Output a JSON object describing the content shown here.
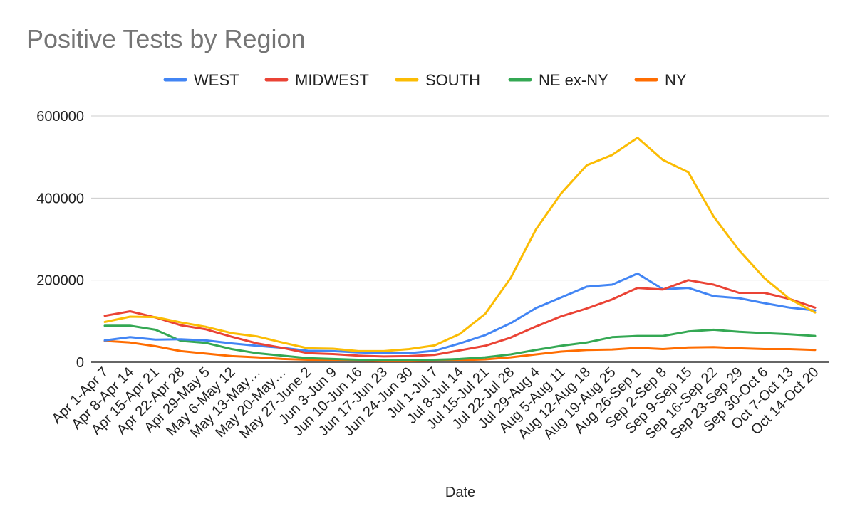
{
  "chart_data": {
    "type": "line",
    "title": "Positive Tests by Region",
    "xlabel": "Date",
    "ylabel": "",
    "ylim": [
      0,
      600000
    ],
    "yticks": [
      "0",
      "200000",
      "400000",
      "600000"
    ],
    "grid": true,
    "legend_position": "top",
    "categories": [
      "Apr 1-Apr 7",
      "Apr 8-Apr 14",
      "Apr 15-Apr 21",
      "Apr 22-Apr 28",
      "Apr 29-May 5",
      "May 6-May 12",
      "May 13-May…",
      "May 20-May…",
      "May 27-June 2",
      "Jun 3-Jun 9",
      "Jun 10-Jun 16",
      "Jun 17-Jun 23",
      "Jun 24-Jun 30",
      "Jul 1-Jul 7",
      "Jul 8-Jul 14",
      "Jul 15-Jul 21",
      "Jul 22-Jul 28",
      "Jul 29-Aug 4",
      "Aug 5-Aug 11",
      "Aug 12-Aug 18",
      "Aug 19-Aug 25",
      "Aug 26-Sep 1",
      "Sep 2-Sep 8",
      "Sep 9-Sep 15",
      "Sep 16-Sep 22",
      "Sep 23-Sep 29",
      "Sep 30-Oct 6",
      "Oct 7-Oct 13",
      "Oct 14-Oct 20"
    ],
    "series": [
      {
        "name": "WEST",
        "color": "#4285f4",
        "values": [
          53000,
          61000,
          55000,
          56000,
          53000,
          46000,
          40000,
          35000,
          28000,
          27000,
          24000,
          22000,
          22000,
          28000,
          46000,
          66000,
          95000,
          132000,
          158000,
          184000,
          189000,
          216000,
          178000,
          181000,
          161000,
          156000,
          144000,
          133000,
          126000
        ]
      },
      {
        "name": "MIDWEST",
        "color": "#ea4335",
        "values": [
          113000,
          124000,
          109000,
          90000,
          80000,
          62000,
          46000,
          35000,
          22000,
          20000,
          16000,
          14000,
          15000,
          18000,
          29000,
          40000,
          60000,
          87000,
          112000,
          131000,
          153000,
          181000,
          177000,
          200000,
          189000,
          169000,
          169000,
          154000,
          133000
        ]
      },
      {
        "name": "SOUTH",
        "color": "#fbbc04",
        "values": [
          98000,
          111000,
          110000,
          97000,
          86000,
          71000,
          63000,
          48000,
          34000,
          33000,
          27000,
          27000,
          32000,
          41000,
          69000,
          118000,
          205000,
          324000,
          412000,
          480000,
          505000,
          547000,
          493000,
          463000,
          355000,
          273000,
          205000,
          154000,
          121000
        ]
      },
      {
        "name": "NE ex-NY",
        "color": "#34a853",
        "values": [
          89000,
          89000,
          79000,
          52000,
          47000,
          32000,
          22000,
          16000,
          10000,
          8000,
          6000,
          5000,
          5000,
          6000,
          8000,
          12000,
          19000,
          30000,
          40000,
          48000,
          61000,
          64000,
          64000,
          75000,
          79000,
          74000,
          71000,
          68000,
          64000
        ]
      },
      {
        "name": "NY",
        "color": "#ff6d01",
        "values": [
          52000,
          48000,
          39000,
          27000,
          21000,
          15000,
          12000,
          8000,
          6000,
          5000,
          4000,
          3000,
          3000,
          4000,
          5000,
          7000,
          12000,
          19000,
          26000,
          30000,
          31000,
          35000,
          32000,
          36000,
          37000,
          34000,
          32000,
          32000,
          30000
        ]
      }
    ]
  }
}
